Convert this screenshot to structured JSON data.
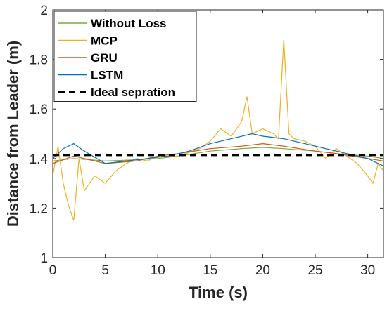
{
  "chart_data": {
    "type": "line",
    "title": "",
    "xlabel": "Time (s)",
    "ylabel": "Distance from Leader (m)",
    "xlim": [
      0,
      31.5
    ],
    "ylim": [
      1,
      2
    ],
    "xticks": [
      0,
      5,
      10,
      15,
      20,
      25,
      30
    ],
    "yticks": [
      1,
      1.2,
      1.4,
      1.6,
      1.8,
      2
    ],
    "xtick_labels": [
      "0",
      "5",
      "10",
      "15",
      "20",
      "25",
      "30"
    ],
    "ytick_labels": [
      "1",
      "1.2",
      "1.4",
      "1.6",
      "1.8",
      "2"
    ],
    "grid": false,
    "legend_position": "top-left",
    "series": [
      {
        "name": "Without Loss",
        "color": "#77AC30",
        "style": "solid",
        "points": [
          [
            0,
            1.39
          ],
          [
            2,
            1.4
          ],
          [
            5,
            1.39
          ],
          [
            8,
            1.395
          ],
          [
            10,
            1.4
          ],
          [
            12,
            1.41
          ],
          [
            15,
            1.43
          ],
          [
            18,
            1.44
          ],
          [
            20,
            1.445
          ],
          [
            22,
            1.44
          ],
          [
            25,
            1.43
          ],
          [
            27,
            1.42
          ],
          [
            30,
            1.41
          ],
          [
            31.5,
            1.4
          ]
        ]
      },
      {
        "name": "MCP",
        "color": "#EDB120",
        "style": "solid",
        "points": [
          [
            0,
            1.33
          ],
          [
            0.5,
            1.45
          ],
          [
            1,
            1.3
          ],
          [
            1.5,
            1.21
          ],
          [
            2,
            1.15
          ],
          [
            2.5,
            1.4
          ],
          [
            3,
            1.27
          ],
          [
            4,
            1.33
          ],
          [
            5,
            1.3
          ],
          [
            6,
            1.35
          ],
          [
            7,
            1.38
          ],
          [
            8,
            1.4
          ],
          [
            9,
            1.39
          ],
          [
            10,
            1.41
          ],
          [
            12,
            1.41
          ],
          [
            14,
            1.44
          ],
          [
            15,
            1.47
          ],
          [
            16,
            1.52
          ],
          [
            17,
            1.49
          ],
          [
            18,
            1.55
          ],
          [
            18.5,
            1.65
          ],
          [
            19,
            1.5
          ],
          [
            20,
            1.52
          ],
          [
            21,
            1.5
          ],
          [
            21.5,
            1.48
          ],
          [
            22,
            1.88
          ],
          [
            22.5,
            1.5
          ],
          [
            23,
            1.48
          ],
          [
            24,
            1.47
          ],
          [
            25,
            1.45
          ],
          [
            26,
            1.4
          ],
          [
            27,
            1.44
          ],
          [
            28,
            1.41
          ],
          [
            29,
            1.38
          ],
          [
            30,
            1.33
          ],
          [
            30.5,
            1.3
          ],
          [
            31,
            1.38
          ],
          [
            31.5,
            1.35
          ]
        ]
      },
      {
        "name": "GRU",
        "color": "#D95319",
        "style": "solid",
        "points": [
          [
            0,
            1.38
          ],
          [
            2,
            1.41
          ],
          [
            5,
            1.38
          ],
          [
            8,
            1.39
          ],
          [
            10,
            1.41
          ],
          [
            12,
            1.42
          ],
          [
            15,
            1.44
          ],
          [
            18,
            1.45
          ],
          [
            20,
            1.46
          ],
          [
            22,
            1.45
          ],
          [
            25,
            1.43
          ],
          [
            27,
            1.42
          ],
          [
            30,
            1.4
          ],
          [
            31.5,
            1.39
          ]
        ]
      },
      {
        "name": "LSTM",
        "color": "#0072BD",
        "style": "solid",
        "points": [
          [
            0,
            1.4
          ],
          [
            1,
            1.44
          ],
          [
            2,
            1.46
          ],
          [
            3,
            1.43
          ],
          [
            5,
            1.38
          ],
          [
            7,
            1.39
          ],
          [
            9,
            1.4
          ],
          [
            11,
            1.41
          ],
          [
            13,
            1.43
          ],
          [
            15,
            1.46
          ],
          [
            17,
            1.48
          ],
          [
            19,
            1.5
          ],
          [
            20,
            1.49
          ],
          [
            22,
            1.48
          ],
          [
            24,
            1.46
          ],
          [
            26,
            1.44
          ],
          [
            28,
            1.42
          ],
          [
            30,
            1.4
          ],
          [
            31.5,
            1.37
          ]
        ]
      },
      {
        "name": "Ideal sepration",
        "color": "#000000",
        "style": "dashed",
        "points": [
          [
            0,
            1.414
          ],
          [
            31.5,
            1.414
          ]
        ]
      }
    ]
  }
}
